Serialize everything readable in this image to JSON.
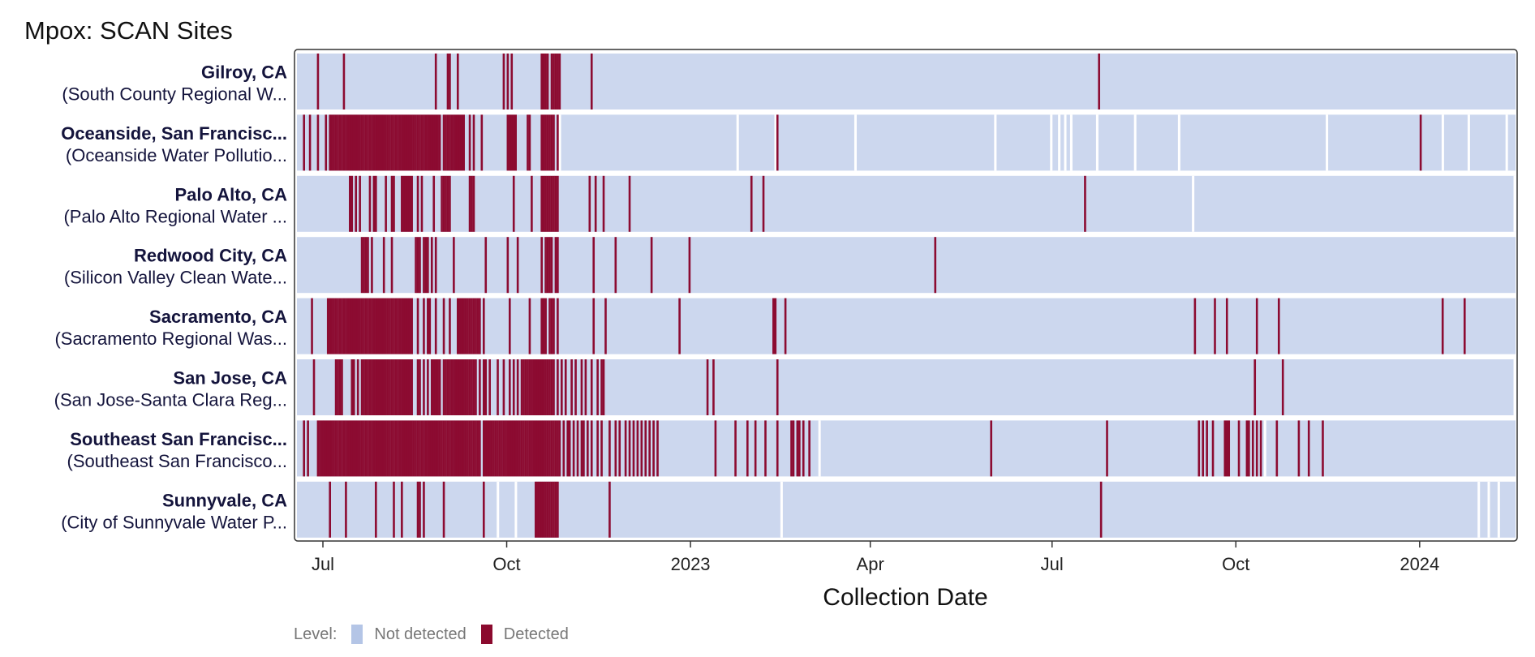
{
  "title": "Mpox: SCAN Sites",
  "chart_data": {
    "type": "heatmap",
    "title": "Mpox: SCAN Sites",
    "xlabel": "Collection Date",
    "ylabel": "",
    "x_ticks": [
      {
        "date": "2022-07-01",
        "label": "Jul"
      },
      {
        "date": "2022-10-01",
        "label": "Oct"
      },
      {
        "date": "2023-01-01",
        "label": "2023"
      },
      {
        "date": "2023-04-01",
        "label": "Apr"
      },
      {
        "date": "2023-07-01",
        "label": "Jul"
      },
      {
        "date": "2023-10-01",
        "label": "Oct"
      },
      {
        "date": "2024-01-01",
        "label": "2024"
      }
    ],
    "x_range": [
      "2022-06-18",
      "2024-02-18"
    ],
    "legend": {
      "title": "Level:",
      "position": "bottom-left",
      "items": [
        {
          "label": "Not detected",
          "color": "#b4c5e6"
        },
        {
          "label": "Detected",
          "color": "#8b0a2e"
        }
      ]
    },
    "colors": {
      "not_detected": "#ccd7ee",
      "detected": "#8c0b31",
      "gap": "#ffffff"
    },
    "sites": [
      {
        "name": "Gilroy, CA",
        "plant": "(South County Regional W...",
        "detected": [
          "2022-06-28",
          "2022-07-11",
          "2022-08-26",
          "2022-09-01",
          "2022-09-02",
          "2022-09-06",
          "2022-09-29",
          "2022-10-01",
          "2022-10-03",
          "2022-10-18",
          "2022-10-19",
          "2022-10-20",
          "2022-10-21",
          "2022-10-23",
          "2022-10-24",
          "2022-10-25",
          "2022-10-26",
          "2022-10-27",
          "2022-11-12",
          "2023-07-24"
        ],
        "gaps": []
      },
      {
        "name": "Oceanside, San Francisc...",
        "plant": "(Oceanside Water Pollutio...",
        "detected": [
          "2022-06-21",
          "2022-06-24",
          "2022-06-28",
          "2022-07-02",
          "2022-07-04",
          "2022-07-05",
          "2022-07-06",
          "2022-07-07",
          "2022-07-08",
          "2022-07-09",
          "2022-07-10",
          "2022-07-11",
          "2022-07-12",
          "2022-07-13",
          "2022-07-14",
          "2022-07-15",
          "2022-07-16",
          "2022-07-17",
          "2022-07-18",
          "2022-07-19",
          "2022-07-20",
          "2022-07-21",
          "2022-07-22",
          "2022-07-23",
          "2022-07-24",
          "2022-07-25",
          "2022-07-26",
          "2022-07-27",
          "2022-07-28",
          "2022-07-29",
          "2022-07-30",
          "2022-07-31",
          "2022-08-01",
          "2022-08-02",
          "2022-08-03",
          "2022-08-04",
          "2022-08-05",
          "2022-08-06",
          "2022-08-07",
          "2022-08-08",
          "2022-08-09",
          "2022-08-10",
          "2022-08-11",
          "2022-08-12",
          "2022-08-13",
          "2022-08-14",
          "2022-08-15",
          "2022-08-16",
          "2022-08-17",
          "2022-08-18",
          "2022-08-19",
          "2022-08-20",
          "2022-08-21",
          "2022-08-22",
          "2022-08-23",
          "2022-08-24",
          "2022-08-25",
          "2022-08-26",
          "2022-08-27",
          "2022-08-28",
          "2022-08-30",
          "2022-08-31",
          "2022-09-01",
          "2022-09-02",
          "2022-09-03",
          "2022-09-04",
          "2022-09-05",
          "2022-09-06",
          "2022-09-07",
          "2022-09-08",
          "2022-09-09",
          "2022-09-12",
          "2022-09-14",
          "2022-09-18",
          "2022-10-01",
          "2022-10-02",
          "2022-10-03",
          "2022-10-04",
          "2022-10-05",
          "2022-10-11",
          "2022-10-12",
          "2022-10-18",
          "2022-10-19",
          "2022-10-20",
          "2022-10-21",
          "2022-10-22",
          "2022-10-23",
          "2022-10-24",
          "2022-10-26",
          "2023-02-13",
          "2024-01-01"
        ],
        "gaps": [
          "2022-10-27",
          "2023-01-24",
          "2023-02-12",
          "2023-03-24",
          "2023-06-02",
          "2023-06-30",
          "2023-07-04",
          "2023-07-07",
          "2023-07-10",
          "2023-07-23",
          "2023-08-11",
          "2023-09-02",
          "2023-11-15",
          "2024-01-12",
          "2024-01-25",
          "2024-02-13"
        ]
      },
      {
        "name": "Palo Alto, CA",
        "plant": "(Palo Alto Regional Water ...",
        "detected": [
          "2022-07-14",
          "2022-07-15",
          "2022-07-17",
          "2022-07-19",
          "2022-07-24",
          "2022-07-26",
          "2022-07-27",
          "2022-08-01",
          "2022-08-04",
          "2022-08-05",
          "2022-08-09",
          "2022-08-10",
          "2022-08-11",
          "2022-08-12",
          "2022-08-13",
          "2022-08-14",
          "2022-08-17",
          "2022-08-19",
          "2022-08-25",
          "2022-08-29",
          "2022-08-30",
          "2022-08-31",
          "2022-09-01",
          "2022-09-02",
          "2022-09-12",
          "2022-09-13",
          "2022-09-14",
          "2022-10-04",
          "2022-10-13",
          "2022-10-18",
          "2022-10-19",
          "2022-10-20",
          "2022-10-21",
          "2022-10-22",
          "2022-10-23",
          "2022-10-24",
          "2022-10-25",
          "2022-10-26",
          "2022-11-11",
          "2022-11-14",
          "2022-11-18",
          "2022-12-01",
          "2023-01-31",
          "2023-02-06",
          "2023-07-17"
        ],
        "gaps": [
          "2023-09-09",
          "2024-02-17"
        ]
      },
      {
        "name": "Redwood City, CA",
        "plant": "(Silicon Valley Clean Wate...",
        "detected": [
          "2022-07-20",
          "2022-07-21",
          "2022-07-22",
          "2022-07-23",
          "2022-07-25",
          "2022-07-31",
          "2022-08-04",
          "2022-08-16",
          "2022-08-17",
          "2022-08-18",
          "2022-08-20",
          "2022-08-21",
          "2022-08-22",
          "2022-08-24",
          "2022-08-26",
          "2022-09-04",
          "2022-09-20",
          "2022-10-01",
          "2022-10-06",
          "2022-10-18",
          "2022-10-20",
          "2022-10-21",
          "2022-10-22",
          "2022-10-23",
          "2022-10-25",
          "2022-10-26",
          "2022-11-13",
          "2022-11-24",
          "2022-12-12",
          "2022-12-31",
          "2023-05-03"
        ],
        "gaps": []
      },
      {
        "name": "Sacramento, CA",
        "plant": "(Sacramento Regional Was...",
        "detected": [
          "2022-06-25",
          "2022-07-03",
          "2022-07-04",
          "2022-07-05",
          "2022-07-06",
          "2022-07-07",
          "2022-07-08",
          "2022-07-09",
          "2022-07-10",
          "2022-07-11",
          "2022-07-12",
          "2022-07-13",
          "2022-07-14",
          "2022-07-15",
          "2022-07-16",
          "2022-07-17",
          "2022-07-18",
          "2022-07-19",
          "2022-07-20",
          "2022-07-21",
          "2022-07-22",
          "2022-07-23",
          "2022-07-24",
          "2022-07-25",
          "2022-07-26",
          "2022-07-27",
          "2022-07-28",
          "2022-07-29",
          "2022-07-30",
          "2022-07-31",
          "2022-08-01",
          "2022-08-02",
          "2022-08-03",
          "2022-08-04",
          "2022-08-05",
          "2022-08-06",
          "2022-08-07",
          "2022-08-08",
          "2022-08-09",
          "2022-08-10",
          "2022-08-11",
          "2022-08-12",
          "2022-08-13",
          "2022-08-14",
          "2022-08-17",
          "2022-08-20",
          "2022-08-22",
          "2022-08-23",
          "2022-08-26",
          "2022-08-30",
          "2022-09-02",
          "2022-09-06",
          "2022-09-07",
          "2022-09-08",
          "2022-09-09",
          "2022-09-10",
          "2022-09-11",
          "2022-09-12",
          "2022-09-13",
          "2022-09-14",
          "2022-09-15",
          "2022-09-16",
          "2022-09-17",
          "2022-09-19",
          "2022-10-02",
          "2022-10-12",
          "2022-10-18",
          "2022-10-19",
          "2022-10-20",
          "2022-10-22",
          "2022-10-23",
          "2022-10-24",
          "2022-10-26",
          "2022-11-13",
          "2022-11-19",
          "2022-12-26",
          "2023-02-11",
          "2023-02-12",
          "2023-02-17",
          "2023-09-10",
          "2023-09-20",
          "2023-09-26",
          "2023-10-11",
          "2023-10-22",
          "2024-01-12",
          "2024-01-23"
        ],
        "gaps": []
      },
      {
        "name": "San Jose, CA",
        "plant": "(San Jose-Santa Clara Reg...",
        "detected": [
          "2022-06-26",
          "2022-07-07",
          "2022-07-08",
          "2022-07-09",
          "2022-07-10",
          "2022-07-15",
          "2022-07-16",
          "2022-07-18",
          "2022-07-20",
          "2022-07-21",
          "2022-07-22",
          "2022-07-23",
          "2022-07-24",
          "2022-07-25",
          "2022-07-26",
          "2022-07-27",
          "2022-07-28",
          "2022-07-29",
          "2022-07-30",
          "2022-07-31",
          "2022-08-01",
          "2022-08-02",
          "2022-08-03",
          "2022-08-04",
          "2022-08-05",
          "2022-08-06",
          "2022-08-07",
          "2022-08-08",
          "2022-08-09",
          "2022-08-10",
          "2022-08-11",
          "2022-08-12",
          "2022-08-13",
          "2022-08-14",
          "2022-08-17",
          "2022-08-18",
          "2022-08-20",
          "2022-08-22",
          "2022-08-24",
          "2022-08-25",
          "2022-08-26",
          "2022-08-27",
          "2022-08-28",
          "2022-08-30",
          "2022-08-31",
          "2022-09-01",
          "2022-09-02",
          "2022-09-03",
          "2022-09-04",
          "2022-09-05",
          "2022-09-06",
          "2022-09-07",
          "2022-09-08",
          "2022-09-09",
          "2022-09-10",
          "2022-09-11",
          "2022-09-12",
          "2022-09-13",
          "2022-09-14",
          "2022-09-15",
          "2022-09-17",
          "2022-09-19",
          "2022-09-20",
          "2022-09-22",
          "2022-09-26",
          "2022-09-29",
          "2022-10-02",
          "2022-10-04",
          "2022-10-06",
          "2022-10-08",
          "2022-10-09",
          "2022-10-10",
          "2022-10-11",
          "2022-10-12",
          "2022-10-13",
          "2022-10-14",
          "2022-10-15",
          "2022-10-16",
          "2022-10-17",
          "2022-10-18",
          "2022-10-19",
          "2022-10-20",
          "2022-10-21",
          "2022-10-22",
          "2022-10-23",
          "2022-10-24",
          "2022-10-26",
          "2022-10-28",
          "2022-10-30",
          "2022-11-02",
          "2022-11-04",
          "2022-11-07",
          "2022-11-09",
          "2022-11-12",
          "2022-11-15",
          "2022-11-17",
          "2022-11-18",
          "2023-01-09",
          "2023-01-12",
          "2023-02-13",
          "2023-10-10",
          "2023-10-24"
        ],
        "gaps": [
          "2024-02-17"
        ]
      },
      {
        "name": "Southeast San Francisc...",
        "plant": "(Southeast San Francisco...",
        "detected": [
          "2022-06-21",
          "2022-06-23",
          "2022-06-28",
          "2022-06-29",
          "2022-06-30",
          "2022-07-01",
          "2022-07-02",
          "2022-07-03",
          "2022-07-04",
          "2022-07-05",
          "2022-07-06",
          "2022-07-07",
          "2022-07-08",
          "2022-07-09",
          "2022-07-10",
          "2022-07-11",
          "2022-07-12",
          "2022-07-13",
          "2022-07-14",
          "2022-07-15",
          "2022-07-16",
          "2022-07-17",
          "2022-07-18",
          "2022-07-19",
          "2022-07-20",
          "2022-07-21",
          "2022-07-22",
          "2022-07-23",
          "2022-07-24",
          "2022-07-25",
          "2022-07-26",
          "2022-07-27",
          "2022-07-28",
          "2022-07-29",
          "2022-07-30",
          "2022-07-31",
          "2022-08-01",
          "2022-08-02",
          "2022-08-03",
          "2022-08-04",
          "2022-08-05",
          "2022-08-06",
          "2022-08-07",
          "2022-08-08",
          "2022-08-09",
          "2022-08-10",
          "2022-08-11",
          "2022-08-12",
          "2022-08-13",
          "2022-08-14",
          "2022-08-15",
          "2022-08-16",
          "2022-08-17",
          "2022-08-18",
          "2022-08-19",
          "2022-08-20",
          "2022-08-21",
          "2022-08-22",
          "2022-08-23",
          "2022-08-24",
          "2022-08-25",
          "2022-08-26",
          "2022-08-27",
          "2022-08-28",
          "2022-08-29",
          "2022-08-30",
          "2022-08-31",
          "2022-09-01",
          "2022-09-02",
          "2022-09-03",
          "2022-09-04",
          "2022-09-05",
          "2022-09-06",
          "2022-09-07",
          "2022-09-08",
          "2022-09-09",
          "2022-09-10",
          "2022-09-11",
          "2022-09-12",
          "2022-09-13",
          "2022-09-14",
          "2022-09-15",
          "2022-09-16",
          "2022-09-17",
          "2022-09-19",
          "2022-09-20",
          "2022-09-21",
          "2022-09-22",
          "2022-09-23",
          "2022-09-24",
          "2022-09-25",
          "2022-09-26",
          "2022-09-27",
          "2022-09-28",
          "2022-09-29",
          "2022-09-30",
          "2022-10-01",
          "2022-10-02",
          "2022-10-03",
          "2022-10-04",
          "2022-10-05",
          "2022-10-06",
          "2022-10-07",
          "2022-10-08",
          "2022-10-09",
          "2022-10-10",
          "2022-10-11",
          "2022-10-12",
          "2022-10-13",
          "2022-10-14",
          "2022-10-15",
          "2022-10-16",
          "2022-10-17",
          "2022-10-18",
          "2022-10-19",
          "2022-10-20",
          "2022-10-21",
          "2022-10-22",
          "2022-10-23",
          "2022-10-24",
          "2022-10-25",
          "2022-10-26",
          "2022-10-27",
          "2022-10-29",
          "2022-10-31",
          "2022-11-01",
          "2022-11-03",
          "2022-11-05",
          "2022-11-07",
          "2022-11-08",
          "2022-11-10",
          "2022-11-12",
          "2022-11-15",
          "2022-11-17",
          "2022-11-21",
          "2022-11-24",
          "2022-11-26",
          "2022-11-29",
          "2022-12-01",
          "2022-12-03",
          "2022-12-05",
          "2022-12-07",
          "2022-12-09",
          "2022-12-11",
          "2022-12-13",
          "2022-12-15",
          "2023-01-13",
          "2023-01-23",
          "2023-01-29",
          "2023-02-02",
          "2023-02-07",
          "2023-02-13",
          "2023-02-20",
          "2023-02-21",
          "2023-02-23",
          "2023-02-24",
          "2023-02-26",
          "2023-03-01",
          "2023-05-31",
          "2023-07-28",
          "2023-09-12",
          "2023-09-14",
          "2023-09-16",
          "2023-09-19",
          "2023-09-25",
          "2023-09-26",
          "2023-09-27",
          "2023-10-02",
          "2023-10-06",
          "2023-10-07",
          "2023-10-09",
          "2023-10-11",
          "2023-10-13",
          "2023-10-21",
          "2023-11-01",
          "2023-11-06",
          "2023-11-13"
        ],
        "gaps": [
          "2023-03-06",
          "2023-10-15"
        ]
      },
      {
        "name": "Sunnyvale, CA",
        "plant": "(City of Sunnyvale Water P...",
        "detected": [
          "2022-07-04",
          "2022-07-12",
          "2022-07-27",
          "2022-08-05",
          "2022-08-09",
          "2022-08-17",
          "2022-08-18",
          "2022-08-20",
          "2022-08-30",
          "2022-09-19",
          "2022-10-15",
          "2022-10-16",
          "2022-10-17",
          "2022-10-18",
          "2022-10-19",
          "2022-10-20",
          "2022-10-21",
          "2022-10-22",
          "2022-10-23",
          "2022-10-24",
          "2022-10-25",
          "2022-10-26",
          "2022-11-21",
          "2023-07-25"
        ],
        "gaps": [
          "2022-09-26",
          "2022-10-05",
          "2023-02-15",
          "2024-01-30",
          "2024-02-04",
          "2024-02-09"
        ]
      }
    ]
  }
}
